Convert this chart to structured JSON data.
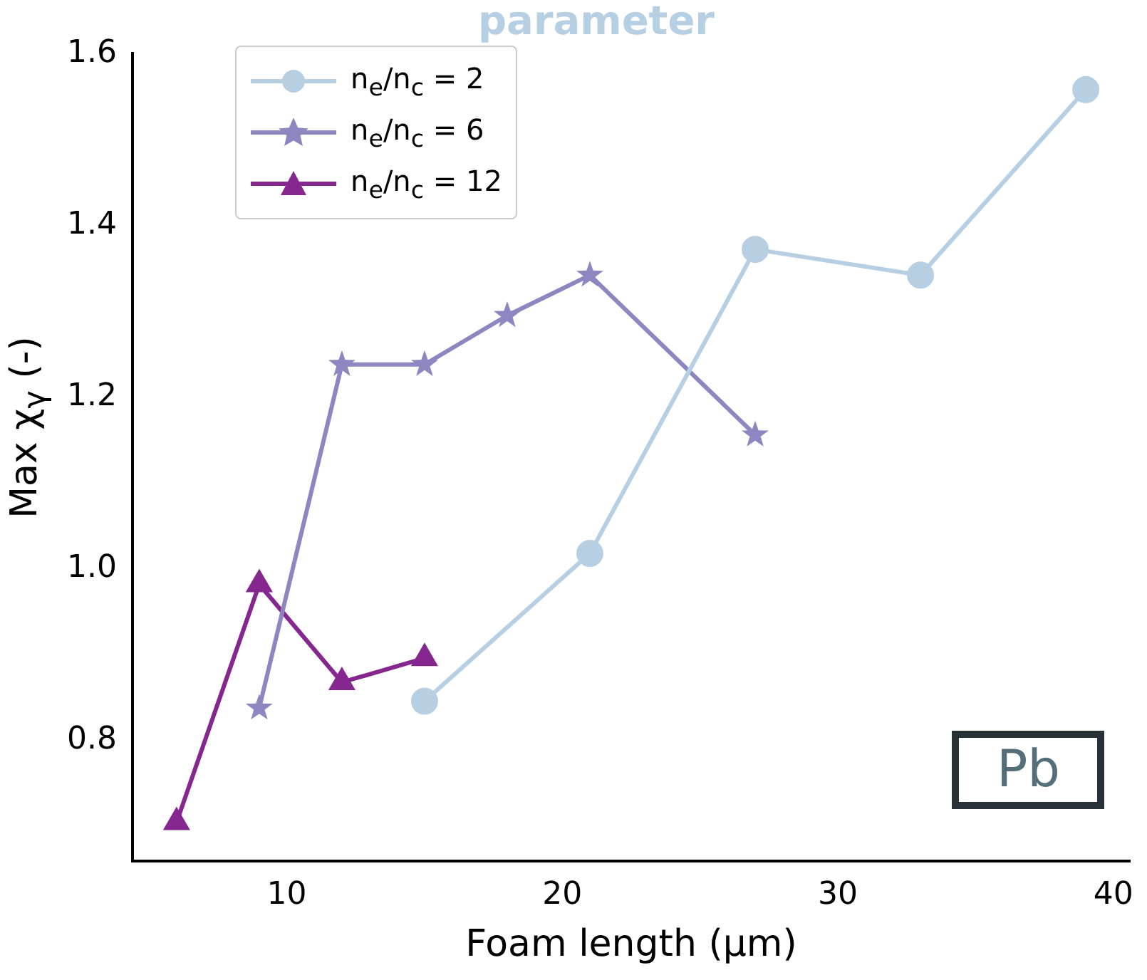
{
  "chart_data": {
    "type": "line",
    "title": "parameter",
    "xlabel": "Foam length (μm)",
    "ylabel": "Max χ$_{γ}$ (-)",
    "xlim": [
      4.4,
      40.6
    ],
    "xticks": [
      10,
      20,
      30,
      40
    ],
    "ylim": [
      0.66,
      1.6
    ],
    "yticks": [
      0.8,
      {
        "value": 1,
        "label": "1.0"
      },
      1.2,
      1.4,
      1.6
    ],
    "grid": false,
    "legend": "top left",
    "series": [
      {
        "name": "n$_{e}$/n$_{c}$ = 2",
        "color": "#b7cfe3",
        "marker": "circle",
        "x": [
          15,
          21,
          27,
          33,
          39
        ],
        "values": [
          0.846,
          1.018,
          1.372,
          1.342,
          1.558
        ]
      },
      {
        "name": "n$_{e}$/n$_{c}$ = 6",
        "color": "#8c87c0",
        "marker": "star",
        "x": [
          9,
          12,
          15,
          18,
          21,
          27
        ],
        "values": [
          0.838,
          1.238,
          1.238,
          1.295,
          1.342,
          1.156
        ]
      },
      {
        "name": "n$_{e}$/n$_{c}$ = 12",
        "color": "#86268f",
        "marker": "triangle",
        "x": [
          6,
          9,
          12,
          15
        ],
        "values": [
          0.705,
          0.982,
          0.868,
          0.896
        ]
      }
    ],
    "annotations": [
      "Pb"
    ]
  }
}
